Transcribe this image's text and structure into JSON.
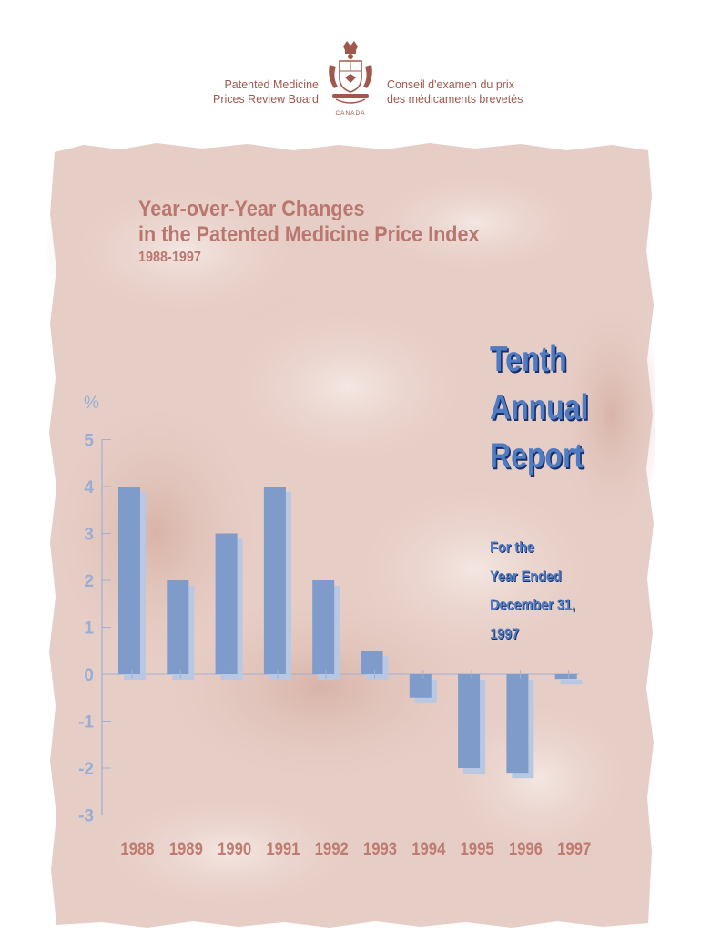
{
  "header": {
    "org_en_line1": "Patented Medicine",
    "org_en_line2": "Prices Review Board",
    "org_fr_line1": "Conseil d'examen du prix",
    "org_fr_line2": "des médicaments brevetés",
    "country": "CANADA"
  },
  "report": {
    "line1": "Tenth",
    "line2": "Annual",
    "line3": "Report",
    "period_line1": "For the",
    "period_line2": "Year Ended",
    "period_line3": "December 31,",
    "period_line4": "1997"
  },
  "colors": {
    "bar": "#7f9bca",
    "bar_shadow": "#b9c8e2",
    "axis": "#9fb1d6",
    "tick_label": "#97aed6",
    "year_label": "#bd7b72",
    "title": "#b9776f",
    "panel": "#e7cec6"
  },
  "chart_data": {
    "type": "bar",
    "title": "Year-over-Year Changes",
    "title_line2": "in the Patented Medicine Price Index",
    "subtitle": "1988-1997",
    "ylabel": "%",
    "xlabel": "",
    "categories": [
      "1988",
      "1989",
      "1990",
      "1991",
      "1992",
      "1993",
      "1994",
      "1995",
      "1996",
      "1997"
    ],
    "values": [
      4,
      2,
      3,
      4,
      2,
      0.5,
      -0.5,
      -2,
      -2.1,
      -0.1
    ],
    "ylim": [
      -3,
      5
    ],
    "yticks": [
      "5",
      "4",
      "3",
      "2",
      "1",
      "0",
      "-1",
      "-2",
      "-3"
    ],
    "grid": false,
    "legend": "none"
  }
}
